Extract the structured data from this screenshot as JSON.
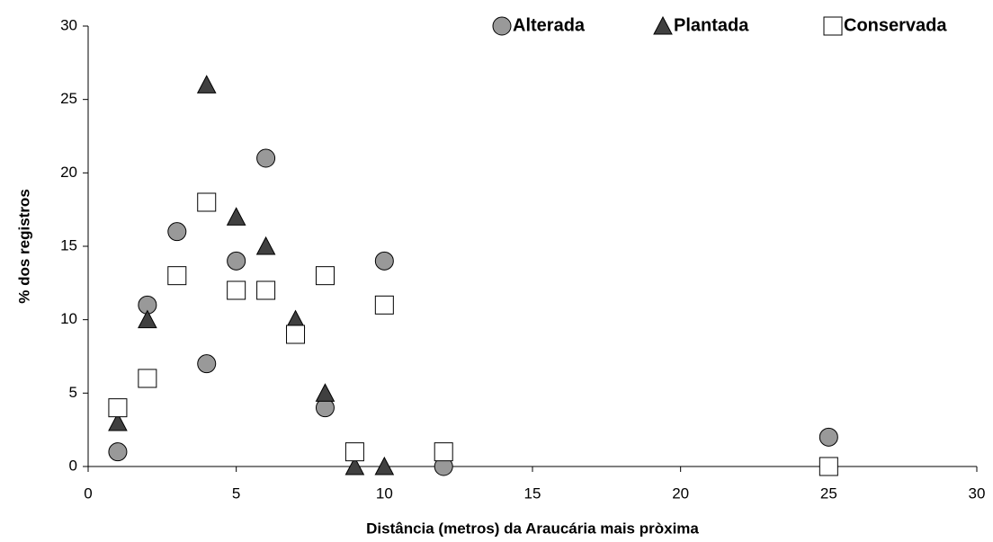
{
  "chart_data": {
    "type": "scatter",
    "x_label": "Distância (metros) da Araucária mais pròxima",
    "y_label": "% dos registros",
    "xlim": [
      0,
      30
    ],
    "xticks": [
      0,
      5,
      10,
      15,
      20,
      25,
      30
    ],
    "ylim": [
      0,
      30
    ],
    "yticks": [
      0,
      5,
      10,
      15,
      20,
      25,
      30
    ],
    "grid": false,
    "legend": "top-right",
    "series": [
      {
        "name": "Alterada",
        "marker": "circle",
        "color": "#999999",
        "x": [
          1,
          2,
          3,
          4,
          5,
          6,
          8,
          10,
          12,
          25
        ],
        "values": [
          1,
          11,
          16,
          7,
          14,
          21,
          4,
          14,
          0,
          2
        ]
      },
      {
        "name": "Plantada",
        "marker": "triangle",
        "color": "#404040",
        "x": [
          1,
          2,
          4,
          5,
          6,
          7,
          8,
          9,
          10
        ],
        "values": [
          3,
          10,
          26,
          17,
          15,
          10,
          5,
          0,
          0
        ]
      },
      {
        "name": "Conservada",
        "marker": "square",
        "color": "#ffffff",
        "x": [
          1,
          2,
          3,
          4,
          5,
          6,
          7,
          8,
          9,
          10,
          12,
          25
        ],
        "values": [
          4,
          6,
          13,
          18,
          12,
          12,
          9,
          13,
          1,
          11,
          1,
          0
        ]
      }
    ]
  }
}
